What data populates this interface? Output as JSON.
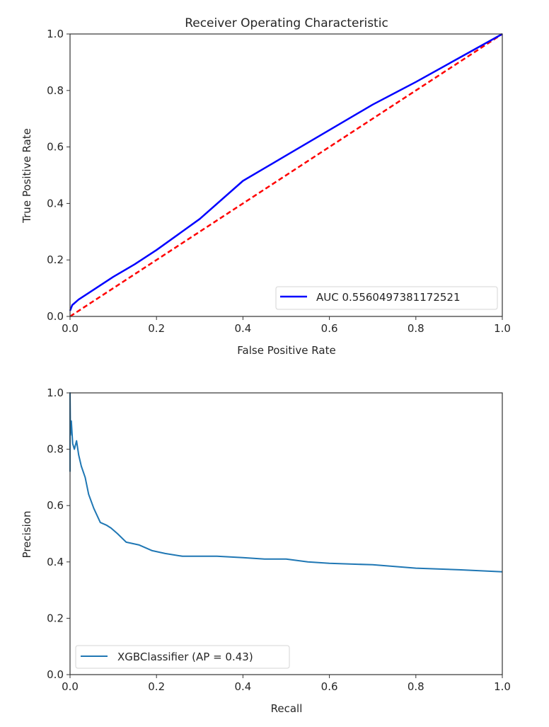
{
  "chart_data": [
    {
      "type": "line",
      "title": "Receiver Operating Characteristic",
      "xlabel": "False Positive Rate",
      "ylabel": "True Positive Rate",
      "xlim": [
        0,
        1
      ],
      "ylim": [
        0,
        1
      ],
      "xticks": [
        "0.0",
        "0.2",
        "0.4",
        "0.6",
        "0.8",
        "1.0"
      ],
      "yticks": [
        "0.0",
        "0.2",
        "0.4",
        "0.6",
        "0.8",
        "1.0"
      ],
      "grid": false,
      "legend_position": "lower-right",
      "series": [
        {
          "name": "AUC 0.5560497381172521",
          "color": "#0000ff",
          "style": "solid",
          "x": [
            0,
            0.005,
            0.02,
            0.05,
            0.1,
            0.15,
            0.2,
            0.3,
            0.4,
            0.5,
            0.6,
            0.7,
            0.8,
            0.9,
            1.0
          ],
          "y": [
            0.02,
            0.04,
            0.06,
            0.09,
            0.14,
            0.185,
            0.235,
            0.345,
            0.48,
            0.57,
            0.66,
            0.75,
            0.83,
            0.915,
            1.0
          ]
        },
        {
          "color": "#ff0000",
          "style": "dashed",
          "x": [
            0,
            1
          ],
          "y": [
            0,
            1
          ]
        }
      ]
    },
    {
      "type": "line",
      "title": "",
      "xlabel": "Recall",
      "ylabel": "Precision",
      "xlim": [
        0,
        1
      ],
      "ylim": [
        0,
        1
      ],
      "xticks": [
        "0.0",
        "0.2",
        "0.4",
        "0.6",
        "0.8",
        "1.0"
      ],
      "yticks": [
        "0.0",
        "0.2",
        "0.4",
        "0.6",
        "0.8",
        "1.0"
      ],
      "grid": false,
      "legend_position": "lower-left",
      "series": [
        {
          "name": "XGBClassifier (AP = 0.43)",
          "color": "#1f77b4",
          "style": "solid",
          "x": [
            0,
            0,
            0.001,
            0.003,
            0.006,
            0.01,
            0.015,
            0.02,
            0.026,
            0.035,
            0.043,
            0.055,
            0.07,
            0.085,
            0.095,
            0.11,
            0.13,
            0.16,
            0.19,
            0.22,
            0.26,
            0.3,
            0.34,
            0.4,
            0.45,
            0.5,
            0.55,
            0.6,
            0.7,
            0.8,
            0.9,
            1.0
          ],
          "y": [
            0.72,
            1.0,
            0.85,
            0.9,
            0.82,
            0.8,
            0.83,
            0.78,
            0.74,
            0.7,
            0.64,
            0.59,
            0.54,
            0.53,
            0.52,
            0.5,
            0.47,
            0.46,
            0.44,
            0.43,
            0.42,
            0.42,
            0.42,
            0.415,
            0.41,
            0.41,
            0.4,
            0.395,
            0.39,
            0.378,
            0.372,
            0.365
          ]
        }
      ]
    }
  ]
}
